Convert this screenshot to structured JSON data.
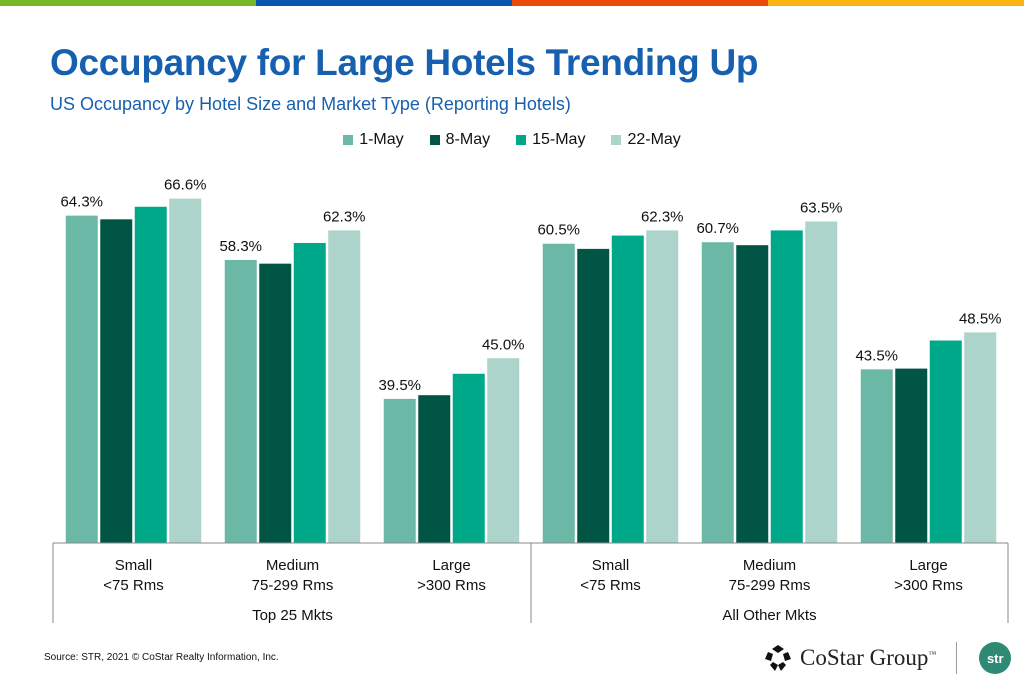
{
  "header": {
    "title": "Occupancy for Large Hotels Trending Up",
    "subtitle": "US Occupancy by Hotel Size and Market Type (Reporting Hotels)",
    "strip_colors": [
      "#77b82a",
      "#0857ad",
      "#ec4a0a",
      "#fbb314"
    ]
  },
  "chart_data": {
    "type": "bar",
    "title": "Occupancy for Large Hotels Trending Up",
    "subtitle": "US Occupancy by Hotel Size and Market Type (Reporting Hotels)",
    "categories": [
      [
        "Small",
        "<75 Rms"
      ],
      [
        "Medium",
        "75-299 Rms"
      ],
      [
        "Large",
        ">300 Rms"
      ],
      [
        "Small",
        "<75 Rms"
      ],
      [
        "Medium",
        "75-299 Rms"
      ],
      [
        "Large",
        ">300 Rms"
      ]
    ],
    "category_groups": [
      {
        "label": "Top 25 Mkts",
        "span": 3
      },
      {
        "label": "All Other Mkts",
        "span": 3
      }
    ],
    "series": [
      {
        "name": "1-May",
        "color": "#6bb8a6",
        "values": [
          64.3,
          58.3,
          39.5,
          60.5,
          60.7,
          43.5
        ],
        "labeled": true
      },
      {
        "name": "8-May",
        "color": "#005544",
        "values": [
          63.8,
          57.8,
          40.0,
          59.8,
          60.3,
          43.6
        ],
        "labeled": false
      },
      {
        "name": "15-May",
        "color": "#00a88a",
        "values": [
          65.5,
          60.6,
          42.9,
          61.6,
          62.3,
          47.4
        ],
        "labeled": false
      },
      {
        "name": "22-May",
        "color": "#acd4ca",
        "values": [
          66.6,
          62.3,
          45.0,
          62.3,
          63.5,
          48.5
        ],
        "labeled": true
      }
    ],
    "value_format": "%",
    "ylim": [
      20,
      70
    ],
    "grid": false,
    "legend": "top"
  },
  "footer": {
    "source": "Source: STR, 2021 © CoStar Realty Information, Inc.",
    "logo_costar": "CoStar Group",
    "logo_costar_tm": "™",
    "logo_str": "str"
  }
}
